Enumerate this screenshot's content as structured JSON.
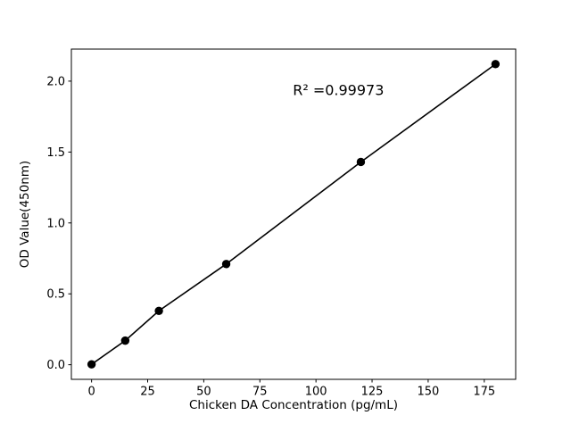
{
  "chart_data": {
    "type": "scatter",
    "title": "",
    "xlabel": "Chicken DA Concentration (pg/mL)",
    "ylabel": "OD Value(450nm)",
    "x": [
      0,
      15,
      30,
      60,
      120,
      180
    ],
    "y": [
      0.003,
      0.17,
      0.38,
      0.71,
      1.43,
      2.12
    ],
    "line_through_points": true,
    "annotation": {
      "text": "R² =0.99973",
      "x": 110,
      "y": 1.93
    },
    "xlim": [
      -9,
      189
    ],
    "ylim": [
      -0.103,
      2.226
    ],
    "xticks": [
      0,
      25,
      50,
      75,
      100,
      125,
      150,
      175
    ],
    "xtick_labels": [
      "0",
      "25",
      "50",
      "75",
      "100",
      "125",
      "150",
      "175"
    ],
    "yticks": [
      0.0,
      0.5,
      1.0,
      1.5,
      2.0
    ],
    "ytick_labels": [
      "0.0",
      "0.5",
      "1.0",
      "1.5",
      "2.0"
    ],
    "legend": "none",
    "grid": false,
    "colors": {
      "line": "#000000",
      "marker": "#000000",
      "axes": "#000000",
      "background": "#ffffff"
    }
  }
}
